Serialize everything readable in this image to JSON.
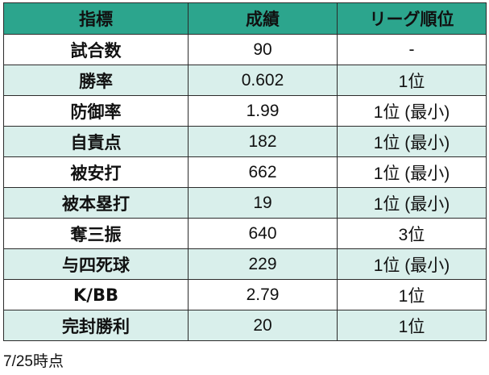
{
  "table": {
    "headers": [
      "指標",
      "成績",
      "リーグ順位"
    ],
    "rows": [
      {
        "metric": "試合数",
        "value": "90",
        "rank": "-"
      },
      {
        "metric": "勝率",
        "value": "0.602",
        "rank": "1位"
      },
      {
        "metric": "防御率",
        "value": "1.99",
        "rank": "1位 (最小)"
      },
      {
        "metric": "自責点",
        "value": "182",
        "rank": "1位 (最小)"
      },
      {
        "metric": "被安打",
        "value": "662",
        "rank": "1位 (最小)"
      },
      {
        "metric": "被本塁打",
        "value": "19",
        "rank": "1位 (最小)"
      },
      {
        "metric": "奪三振",
        "value": "640",
        "rank": "3位"
      },
      {
        "metric": "与四死球",
        "value": "229",
        "rank": "1位 (最小)"
      },
      {
        "metric": "K/BB",
        "value": "2.79",
        "rank": "1位"
      },
      {
        "metric": "完封勝利",
        "value": "20",
        "rank": "1位"
      }
    ]
  },
  "footnote": "7/25時点",
  "colors": {
    "header_bg": "#2ca58d",
    "stripe_bg": "#d9efeb",
    "border": "#2b2b2b"
  }
}
